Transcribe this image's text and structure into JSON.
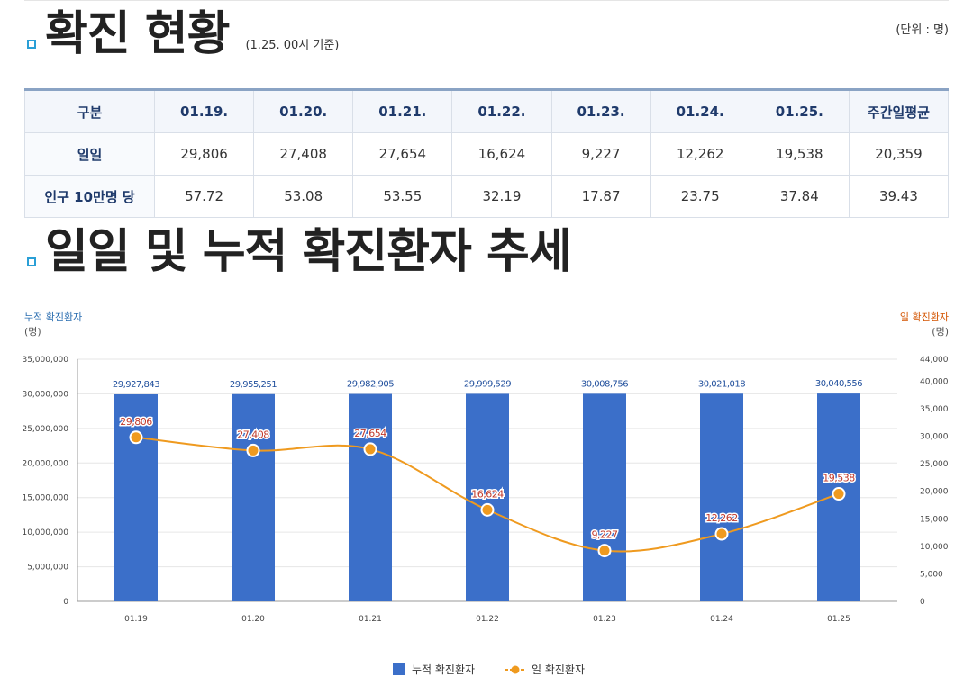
{
  "status_section": {
    "title": "확진 현황",
    "subtitle": "(1.25. 00시 기준)",
    "unit": "(단위 : 명)"
  },
  "table": {
    "headers": [
      "구분",
      "01.19.",
      "01.20.",
      "01.21.",
      "01.22.",
      "01.23.",
      "01.24.",
      "01.25.",
      "주간일평균"
    ],
    "rows": [
      {
        "label": "일일",
        "cells": [
          "29,806",
          "27,408",
          "27,654",
          "16,624",
          "9,227",
          "12,262",
          "19,538",
          "20,359"
        ]
      },
      {
        "label": "인구 10만명 당",
        "cells": [
          "57.72",
          "53.08",
          "53.55",
          "32.19",
          "17.87",
          "23.75",
          "37.84",
          "39.43"
        ]
      }
    ]
  },
  "trend_section": {
    "title": "일일 및 누적 확진환자 추세"
  },
  "chart_data": {
    "type": "bar+line",
    "categories": [
      "01.19",
      "01.20",
      "01.21",
      "01.22",
      "01.23",
      "01.24",
      "01.25"
    ],
    "series": [
      {
        "name": "누적 확진환자",
        "type": "bar",
        "axis": "left",
        "values": [
          29927843,
          29955251,
          29982905,
          29999529,
          30008756,
          30021018,
          30040556
        ],
        "labels": [
          "29,927,843",
          "29,955,251",
          "29,982,905",
          "29,999,529",
          "30,008,756",
          "30,021,018",
          "30,040,556"
        ]
      },
      {
        "name": "일 확진환자",
        "type": "line",
        "axis": "right",
        "values": [
          29806,
          27408,
          27654,
          16624,
          9227,
          12262,
          19538
        ],
        "labels": [
          "29,806",
          "27,408",
          "27,654",
          "16,624",
          "9,227",
          "12,262",
          "19,538"
        ]
      }
    ],
    "left_axis": {
      "title": "누적 확진환자",
      "unit": "(명)",
      "ylim": [
        0,
        35000000
      ],
      "ticks": [
        0,
        5000000,
        10000000,
        15000000,
        20000000,
        25000000,
        30000000,
        35000000
      ],
      "tick_labels": [
        "0",
        "5,000,000",
        "10,000,000",
        "15,000,000",
        "20,000,000",
        "25,000,000",
        "30,000,000",
        "35,000,000"
      ]
    },
    "right_axis": {
      "title": "일 확진환자",
      "unit": "(명)",
      "ylim": [
        0,
        44000
      ],
      "ticks": [
        0,
        5000,
        10000,
        15000,
        20000,
        25000,
        30000,
        35000,
        40000,
        44000
      ],
      "tick_labels": [
        "0",
        "5,000",
        "10,000",
        "15,000",
        "20,000",
        "25,000",
        "30,000",
        "35,000",
        "40,000",
        "44,000"
      ]
    },
    "legend": [
      "누적 확진환자",
      "일 확진환자"
    ],
    "legend_position": "bottom-center",
    "colors": {
      "bar": "#3b6fc9",
      "line": "#ef9a1f",
      "bar_label": "#1f4e9c",
      "line_label": "#c0392b",
      "left_title": "#2a6db0",
      "right_title": "#d35400"
    }
  }
}
